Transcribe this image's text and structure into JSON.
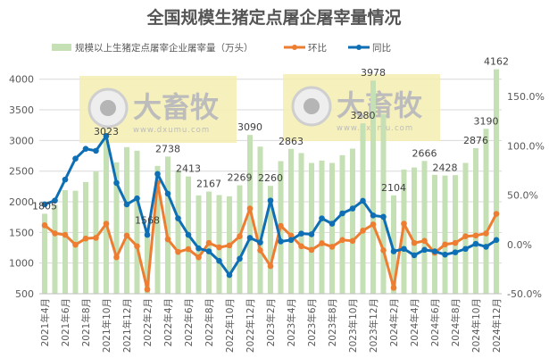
{
  "chart_data": {
    "type": "bar+line",
    "title": "全国规模生猪定点屠企屠宰量情况",
    "categories": [
      "2021-04",
      "2021-05",
      "2021-06",
      "2021-07",
      "2021-08",
      "2021-09",
      "2021-10",
      "2021-11",
      "2021-12",
      "2022-01",
      "2022-02",
      "2022-03",
      "2022-04",
      "2022-05",
      "2022-06",
      "2022-07",
      "2022-08",
      "2022-09",
      "2022-10",
      "2022-11",
      "2022-12",
      "2023-01",
      "2023-02",
      "2023-03",
      "2023-04",
      "2023-05",
      "2023-06",
      "2023-07",
      "2023-08",
      "2023-09",
      "2023-10",
      "2023-11",
      "2023-12",
      "2024-01",
      "2024-02",
      "2024-03",
      "2024-04",
      "2024-05",
      "2024-06",
      "2024-07",
      "2024-08",
      "2024-09",
      "2024-10",
      "2024-11",
      "2024-12"
    ],
    "x_tick_labels": [
      "2021年4月",
      "2021年6月",
      "2021年8月",
      "2021年10月",
      "2021年12月",
      "2022年2月",
      "2022年4月",
      "2022年6月",
      "2022年8月",
      "2022年10月",
      "2022年12月",
      "2023年2月",
      "2023年4月",
      "2023年6月",
      "2023年8月",
      "2023年10月",
      "2023年12月",
      "2024年2月",
      "2024年4月",
      "2024年6月",
      "2024年8月",
      "2024年10月",
      "2024年12月"
    ],
    "y_left": {
      "ticks": [
        "500",
        "1000",
        "1500",
        "2000",
        "2500",
        "3000",
        "3500",
        "4000"
      ],
      "ylim": [
        500,
        4200
      ]
    },
    "y_right": {
      "ticks": [
        "-50.0%",
        "0.0%",
        "50.0%",
        "100.0%",
        "150.0%"
      ],
      "ylim": [
        -50,
        180
      ]
    },
    "grid": true,
    "legend_placement": "top",
    "series": [
      {
        "name": "规模以上生猪定点屠宰企业屠宰量（万头）",
        "type": "bar",
        "axis": "left",
        "color": "#c5e0b4",
        "values": [
          1805,
          1950,
          2190,
          2180,
          2323,
          2493,
          3023,
          2644,
          2892,
          2833,
          1568,
          2585,
          2738,
          2512,
          2413,
          2104,
          2167,
          2110,
          2090,
          2269,
          3090,
          2900,
          2260,
          2663,
          2863,
          2795,
          2634,
          2673,
          2634,
          2760,
          2867,
          3280,
          3978,
          3430,
          2104,
          2527,
          2560,
          2666,
          2440,
          2428,
          2435,
          2634,
          2876,
          3190,
          4162
        ],
        "data_labels": {
          "0": "1805",
          "6": "3023",
          "10": "1568",
          "12": "2738",
          "14": "2413",
          "16": "2167",
          "19": "2269",
          "20": "3090",
          "22": "2260",
          "24": "2863",
          "31": "3280",
          "32": "3978",
          "34": "2104",
          "37": "2666",
          "39": "2428",
          "42": "2876",
          "43": "3190",
          "44": "4162"
        }
      },
      {
        "name": "环比",
        "type": "line",
        "axis": "right",
        "color": "#ed7d31",
        "values": [
          19.4,
          11.2,
          9.7,
          -0.3,
          6,
          6.7,
          21,
          -13,
          9,
          -1.8,
          -45.7,
          62.7,
          5.2,
          -7.6,
          -4.8,
          -13,
          1.5,
          -3,
          -1,
          8.2,
          36.4,
          -6,
          -22,
          18.8,
          9,
          -1.8,
          -5.5,
          1.2,
          -2.4,
          4.5,
          3.6,
          14,
          20.3,
          -6,
          -44,
          21,
          1.5,
          3.6,
          -8.5,
          0,
          1.5,
          8.2,
          9,
          11.2,
          31
        ]
      },
      {
        "name": "同比",
        "type": "line",
        "axis": "right",
        "color": "#0e6fb5",
        "values": [
          40.6,
          44.5,
          65.8,
          87,
          97,
          95,
          110,
          62.4,
          40.6,
          46.7,
          9.7,
          71.5,
          51.5,
          26.4,
          9.7,
          -4,
          -7,
          -16.7,
          -31,
          -14.5,
          6.7,
          2,
          44.5,
          3,
          4.5,
          11,
          10.3,
          26.4,
          21,
          31.5,
          36.4,
          44.2,
          29.4,
          28,
          -7,
          -4.5,
          -11,
          -5.5,
          -7,
          -10.3,
          -8,
          -4.5,
          0.6,
          -2.4,
          4.5
        ]
      }
    ]
  },
  "watermark": {
    "logo_text": "大畜牧",
    "url_text": "www.dxumu.com",
    "background": "#f5efb0"
  }
}
